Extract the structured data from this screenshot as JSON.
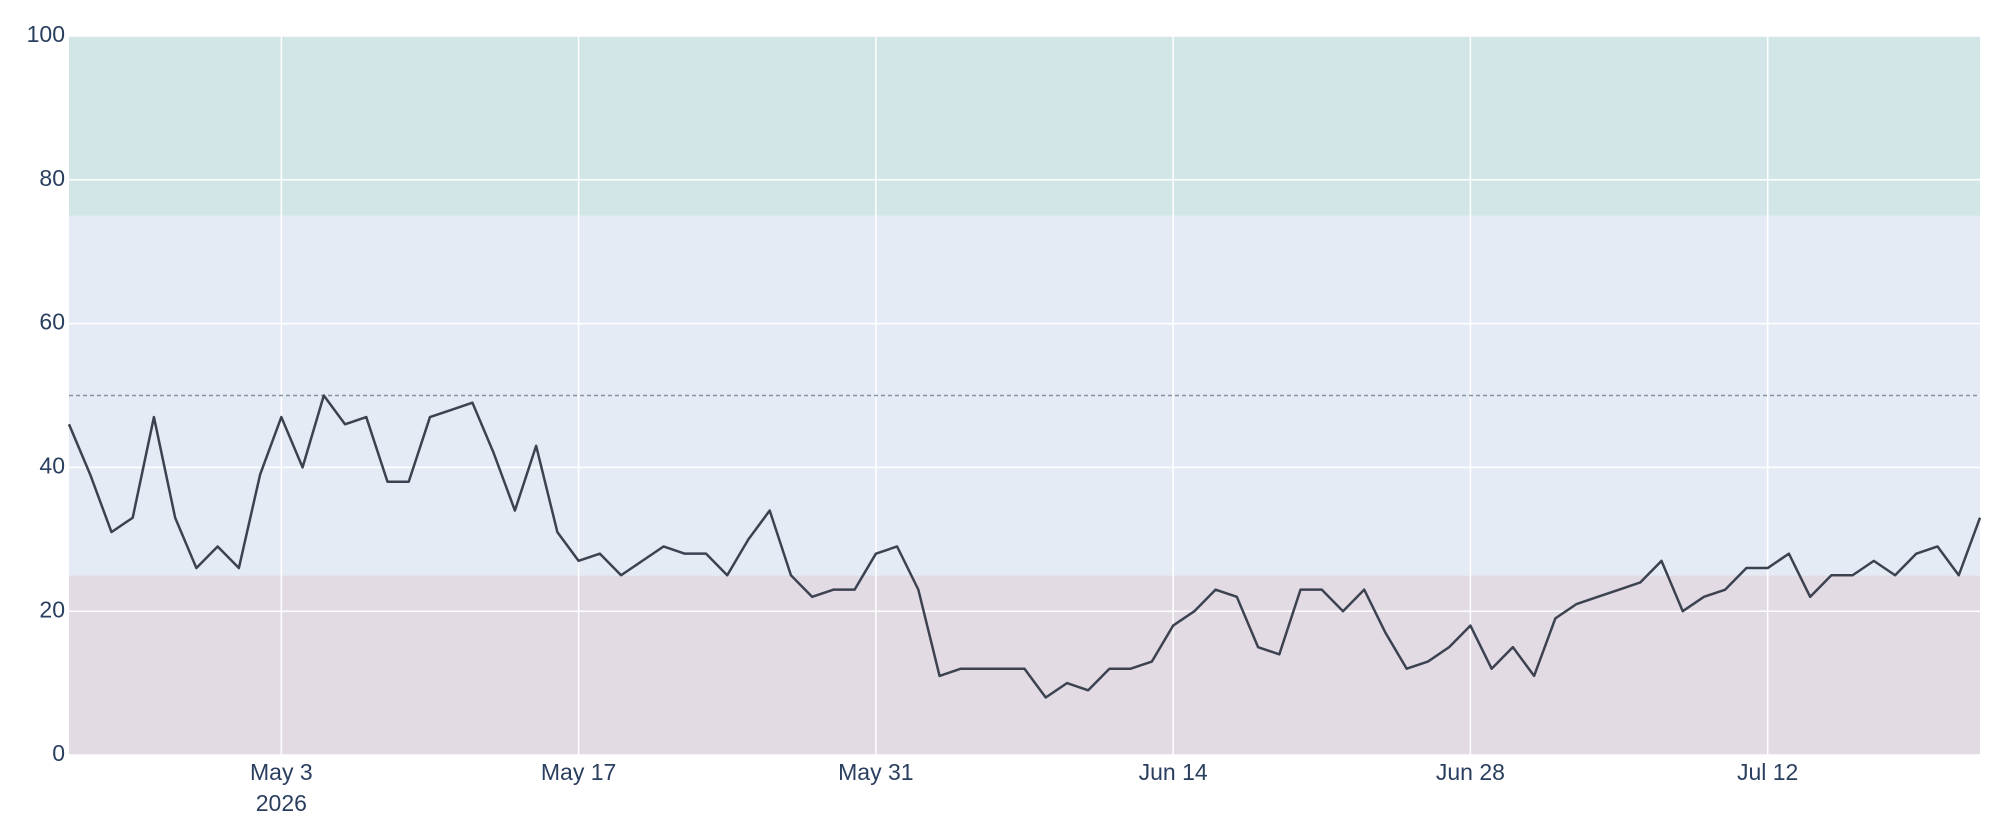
{
  "chart_data": {
    "type": "line",
    "x": [
      "2026-04-23",
      "2026-04-24",
      "2026-04-25",
      "2026-04-26",
      "2026-04-27",
      "2026-04-28",
      "2026-04-29",
      "2026-04-30",
      "2026-05-01",
      "2026-05-02",
      "2026-05-03",
      "2026-05-04",
      "2026-05-05",
      "2026-05-06",
      "2026-05-07",
      "2026-05-08",
      "2026-05-09",
      "2026-05-10",
      "2026-05-11",
      "2026-05-12",
      "2026-05-13",
      "2026-05-14",
      "2026-05-15",
      "2026-05-16",
      "2026-05-17",
      "2026-05-18",
      "2026-05-19",
      "2026-05-20",
      "2026-05-21",
      "2026-05-22",
      "2026-05-23",
      "2026-05-24",
      "2026-05-25",
      "2026-05-26",
      "2026-05-27",
      "2026-05-28",
      "2026-05-29",
      "2026-05-30",
      "2026-05-31",
      "2026-06-01",
      "2026-06-02",
      "2026-06-03",
      "2026-06-04",
      "2026-06-05",
      "2026-06-06",
      "2026-06-07",
      "2026-06-08",
      "2026-06-09",
      "2026-06-10",
      "2026-06-11",
      "2026-06-12",
      "2026-06-13",
      "2026-06-14",
      "2026-06-15",
      "2026-06-16",
      "2026-06-17",
      "2026-06-18",
      "2026-06-19",
      "2026-06-20",
      "2026-06-21",
      "2026-06-22",
      "2026-06-23",
      "2026-06-24",
      "2026-06-25",
      "2026-06-26",
      "2026-06-27",
      "2026-06-28",
      "2026-06-29",
      "2026-06-30",
      "2026-07-01",
      "2026-07-02",
      "2026-07-03",
      "2026-07-04",
      "2026-07-05",
      "2026-07-06",
      "2026-07-07",
      "2026-07-08",
      "2026-07-09",
      "2026-07-10",
      "2026-07-11",
      "2026-07-12",
      "2026-07-13",
      "2026-07-14",
      "2026-07-15",
      "2026-07-16",
      "2026-07-17",
      "2026-07-18",
      "2026-07-19",
      "2026-07-20",
      "2026-07-21",
      "2026-07-22"
    ],
    "series": [
      {
        "color": "#3d4251",
        "values": [
          46,
          39,
          31,
          33,
          47,
          33,
          26,
          29,
          26,
          39,
          47,
          40,
          50,
          46,
          47,
          38,
          38,
          47,
          48,
          49,
          42,
          34,
          43,
          31,
          27,
          28,
          25,
          27,
          29,
          28,
          28,
          25,
          30,
          34,
          25,
          22,
          23,
          23,
          28,
          29,
          23,
          11,
          12,
          12,
          12,
          12,
          8,
          10,
          9,
          12,
          12,
          13,
          18,
          20,
          23,
          22,
          15,
          14,
          23,
          23,
          20,
          23,
          17,
          12,
          13,
          15,
          18,
          12,
          15,
          11,
          19,
          21,
          22,
          23,
          24,
          27,
          20,
          22,
          23,
          26,
          26,
          28,
          22,
          25,
          25,
          27,
          25,
          28,
          29,
          25,
          33
        ]
      }
    ],
    "xlim": [
      "2026-04-23",
      "2026-07-22"
    ],
    "xticks": [
      {
        "value": "2026-05-03",
        "label": "May 3"
      },
      {
        "value": "2026-05-17",
        "label": "May 17"
      },
      {
        "value": "2026-05-31",
        "label": "May 31"
      },
      {
        "value": "2026-06-14",
        "label": "Jun 14"
      },
      {
        "value": "2026-06-28",
        "label": "Jun 28"
      },
      {
        "value": "2026-07-12",
        "label": "Jul 12"
      }
    ],
    "xtick_year": "2026",
    "ylim": [
      0,
      100
    ],
    "yticks": [
      0,
      20,
      40,
      60,
      80,
      100
    ],
    "grid": true,
    "bands": [
      {
        "y0": 0,
        "y1": 25,
        "color": "#e2dbe4"
      },
      {
        "y0": 25,
        "y1": 75,
        "color": "#e5ebf5"
      },
      {
        "y0": 75,
        "y1": 100,
        "color": "#d2e5e7"
      }
    ],
    "reference_line": {
      "y": 50,
      "color": "#8a93a5"
    }
  }
}
